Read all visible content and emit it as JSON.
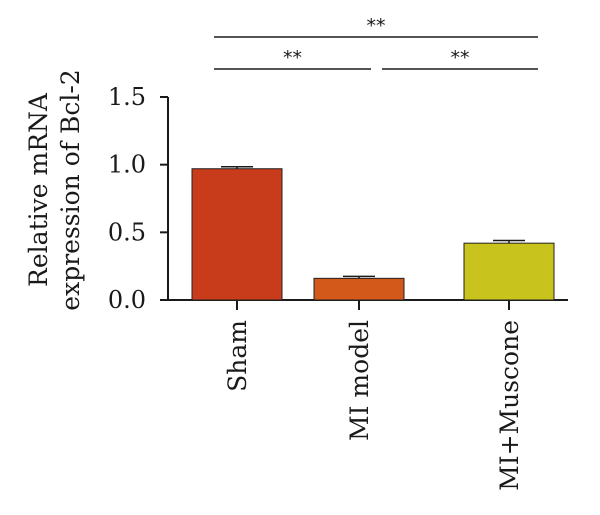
{
  "chart_data": {
    "type": "bar",
    "categories": [
      "Sham",
      "MI model",
      "MI+Muscone"
    ],
    "values": [
      0.97,
      0.16,
      0.42
    ],
    "errors": [
      0.015,
      0.015,
      0.02
    ],
    "colors": [
      "#c83c1c",
      "#d2591a",
      "#c9c31e"
    ],
    "ylabel_lines": [
      "Relative mRNA",
      "expression of Bcl-2"
    ],
    "xlabel": "",
    "ylim": [
      0,
      1.5
    ],
    "yticks": [
      0.0,
      0.5,
      1.0,
      1.5
    ],
    "ytick_labels": [
      "0.0",
      "0.5",
      "1.0",
      "1.5"
    ],
    "grid": false,
    "significance": [
      {
        "between": [
          "Sham",
          "MI model"
        ],
        "label": "**"
      },
      {
        "between": [
          "MI model",
          "MI+Muscone"
        ],
        "label": "**"
      },
      {
        "between": [
          "Sham",
          "MI+Muscone"
        ],
        "label": "**"
      }
    ]
  }
}
